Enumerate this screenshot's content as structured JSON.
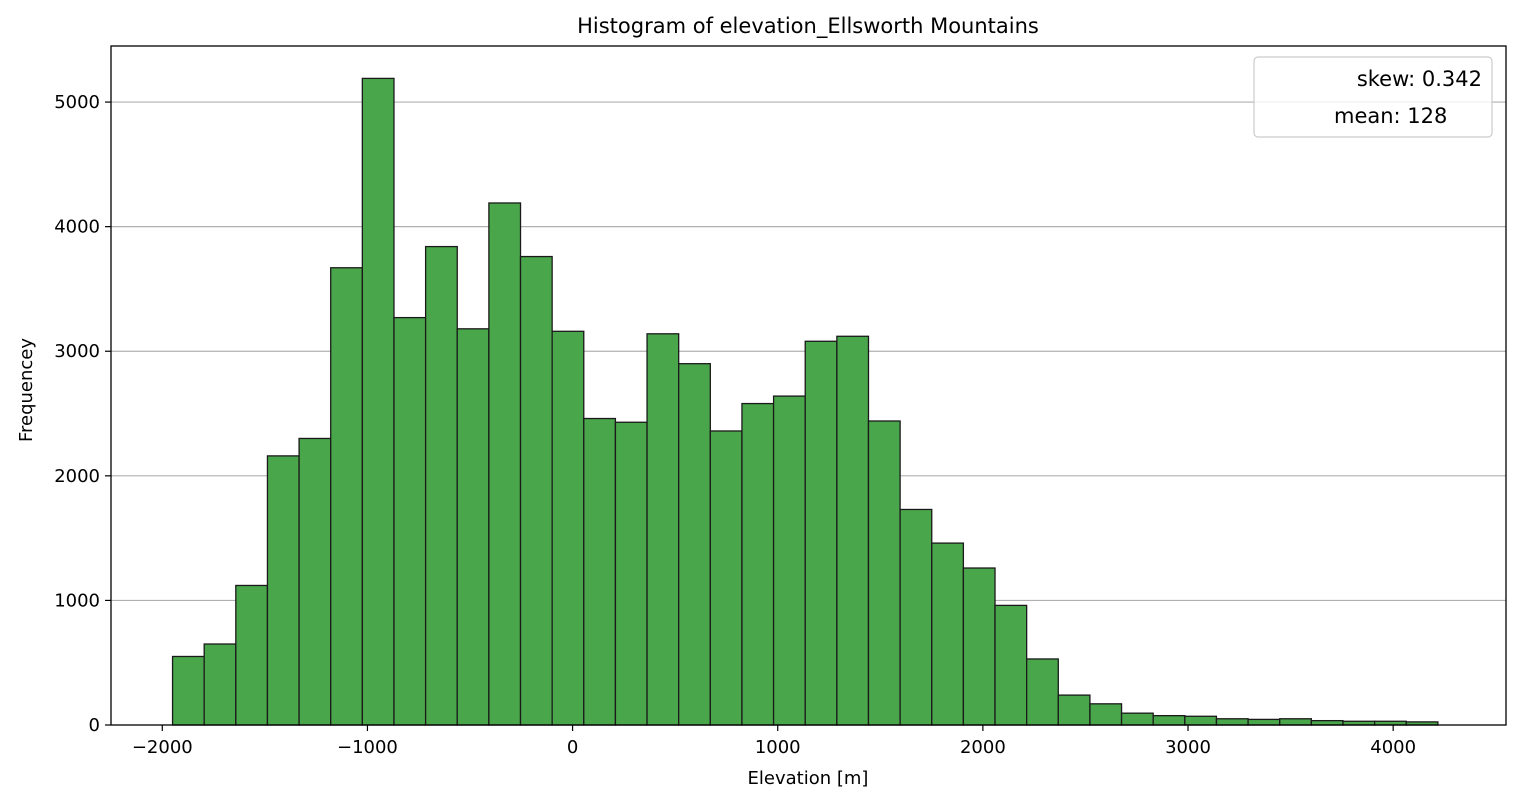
{
  "chart_data": {
    "type": "bar",
    "title": "Histogram of elevation_Ellsworth Mountains",
    "xlabel": "Elevation [m]",
    "ylabel": "Frequencey",
    "xlim": [
      -2250,
      4550
    ],
    "ylim": [
      0,
      5450
    ],
    "xticks": [
      -2000,
      -1000,
      0,
      1000,
      2000,
      3000,
      4000
    ],
    "xtick_labels": [
      "−2000",
      "−1000",
      "0",
      "1000",
      "2000",
      "3000",
      "4000"
    ],
    "yticks": [
      0,
      1000,
      2000,
      3000,
      4000,
      5000
    ],
    "ytick_labels": [
      "0",
      "1000",
      "2000",
      "3000",
      "4000",
      "5000"
    ],
    "grid": "horizontal",
    "legend_position": "top-right",
    "legend": [
      "skew: 0.342",
      "mean: 128"
    ],
    "bar_color": "#4aa64a",
    "edge_color": "#1a1a1a",
    "bin_start": -1950,
    "bin_width": 154.2,
    "values": [
      550,
      650,
      1120,
      2160,
      2300,
      3670,
      5190,
      3270,
      3840,
      3180,
      4190,
      3760,
      3160,
      2460,
      2430,
      3140,
      2900,
      2360,
      2580,
      2640,
      3080,
      3120,
      2440,
      1730,
      1460,
      1260,
      960,
      530,
      240,
      170,
      95,
      75,
      70,
      50,
      45,
      50,
      35,
      30,
      30,
      25
    ]
  }
}
